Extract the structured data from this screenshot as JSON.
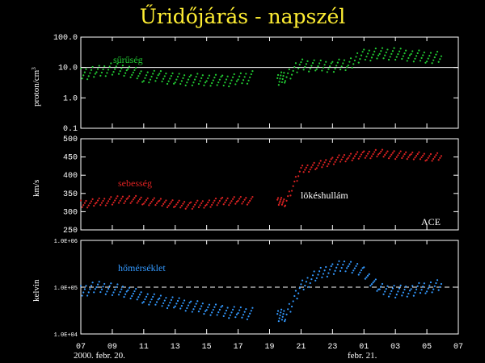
{
  "title": "Űridőjárás - napszél",
  "colors": {
    "title": "#ffee33",
    "density": "#22cc33",
    "speed": "#dd2222",
    "temperature": "#3399ff",
    "frame": "#ffffff"
  },
  "x_ticks": [
    "07",
    "09",
    "11",
    "13",
    "15",
    "17",
    "19",
    "21",
    "23",
    "01",
    "03",
    "05",
    "07"
  ],
  "dates": {
    "start": "2000. febr. 20.",
    "end": "febr. 21."
  },
  "chart_data": [
    {
      "type": "scatter",
      "ylabel": "proton/cm",
      "ylabel_sup": "3",
      "yscale": "log",
      "ylim": [
        0.1,
        100.0
      ],
      "y_ticks": [
        "100.0",
        "10.0",
        "1.0",
        "0.1"
      ],
      "reference_line": 10.0,
      "annotation": "sűrűség",
      "color": "#22cc33",
      "series": [
        {
          "x": [
            7.0,
            8.0,
            9.0,
            10.0,
            11.0,
            12.0,
            13.0,
            14.0,
            15.0,
            16.0,
            17.0,
            18.0,
            19.5,
            20.0,
            21.0,
            22.0,
            23.0,
            24.0,
            25.0,
            26.0,
            27.0,
            28.0,
            29.0,
            30.0
          ],
          "y": [
            6,
            7,
            9,
            8,
            5,
            5,
            4,
            4,
            4,
            3.5,
            4,
            5,
            4,
            5,
            12,
            11,
            11,
            13,
            25,
            28,
            28,
            25,
            22,
            21
          ]
        }
      ]
    },
    {
      "type": "scatter",
      "ylabel": "km/s",
      "ylim": [
        250,
        500
      ],
      "y_ticks": [
        "500",
        "450",
        "400",
        "350",
        "300",
        "250"
      ],
      "annotation": "sebesség",
      "annotation2": "lökéshullám",
      "label_corner": "ACE",
      "color": "#dd2222",
      "series": [
        {
          "x": [
            7.0,
            8.0,
            9.0,
            10.0,
            11.0,
            12.0,
            13.0,
            14.0,
            15.0,
            16.0,
            17.0,
            18.0,
            19.5,
            20.0,
            21.0,
            22.0,
            23.0,
            24.0,
            25.0,
            26.0,
            27.0,
            28.0,
            29.0,
            30.0
          ],
          "y": [
            320,
            325,
            330,
            335,
            330,
            325,
            320,
            318,
            322,
            328,
            330,
            330,
            330,
            325,
            415,
            425,
            440,
            450,
            455,
            460,
            455,
            455,
            450,
            450
          ]
        }
      ]
    },
    {
      "type": "scatter",
      "ylabel": "kelvin",
      "yscale": "log",
      "ylim": [
        10000,
        1000000
      ],
      "y_ticks": [
        "1.0E+06",
        "1.0E+05",
        "1.0E+04"
      ],
      "reference_line": 100000,
      "annotation": "hőmérséklet",
      "color": "#3399ff",
      "series": [
        {
          "x": [
            7.0,
            8.0,
            9.0,
            10.0,
            11.0,
            12.0,
            13.0,
            14.0,
            15.0,
            16.0,
            17.0,
            18.0,
            19.5,
            20.0,
            21.0,
            22.0,
            23.0,
            24.0,
            25.0,
            26.0,
            27.0,
            28.0,
            29.0,
            30.0
          ],
          "y": [
            80000,
            100000,
            90000,
            80000,
            60000,
            50000,
            45000,
            40000,
            35000,
            30000,
            28000,
            27000,
            25000,
            25000,
            100000,
            180000,
            250000,
            300000,
            200000,
            90000,
            80000,
            85000,
            100000,
            110000
          ]
        }
      ]
    }
  ]
}
